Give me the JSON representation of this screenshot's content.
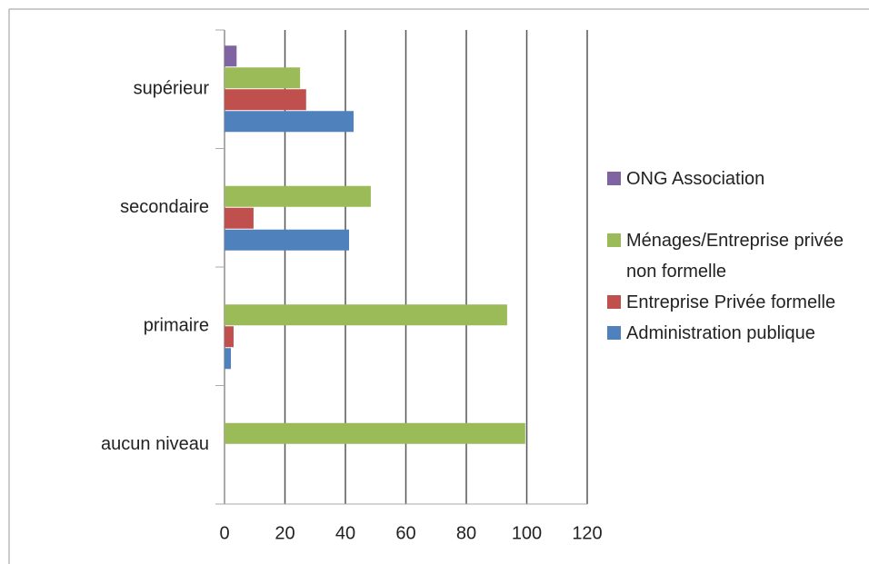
{
  "chart_data": {
    "type": "bar",
    "orientation": "horizontal",
    "categories": [
      "aucun niveau",
      "primaire",
      "secondaire",
      "supérieur"
    ],
    "series": [
      {
        "name": "Administration publique",
        "color": "#4f81bd",
        "values": [
          0,
          2.1,
          41.2,
          42.7
        ]
      },
      {
        "name": "Entreprise Privée formelle",
        "color": "#c0504d",
        "values": [
          0,
          3,
          9.6,
          27
        ]
      },
      {
        "name": "Ménages/Entreprise privée non formelle",
        "color": "#9bbb59",
        "values": [
          99.5,
          93.5,
          48.4,
          25
        ]
      },
      {
        "name": "ONG Association",
        "color": "#8064a2",
        "values": [
          0,
          0,
          0,
          4
        ]
      }
    ],
    "xlim": [
      0,
      120
    ],
    "xticks": [
      0,
      20,
      40,
      60,
      80,
      100,
      120
    ],
    "grid": true,
    "legend": "right"
  }
}
